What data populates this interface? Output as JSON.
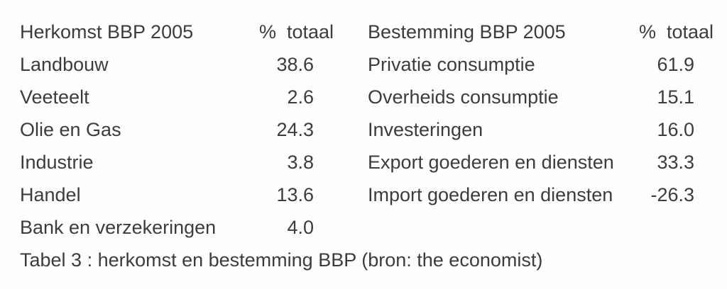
{
  "page": {
    "background": "#fefefe",
    "text_color": "#3c3c3c"
  },
  "tables": [
    {
      "title": "Herkomst BBP 2005",
      "value_header": "%  totaal",
      "rows": [
        {
          "label": "Landbouw",
          "value": "38.6"
        },
        {
          "label": "Veeteelt",
          "value": "2.6"
        },
        {
          "label": "Olie en Gas",
          "value": "24.3"
        },
        {
          "label": "Industrie",
          "value": "3.8"
        },
        {
          "label": "Handel",
          "value": "13.6"
        },
        {
          "label": "Bank en verzekeringen",
          "value": "4.0"
        }
      ]
    },
    {
      "title": "Bestemming BBP 2005",
      "value_header": "%  totaal",
      "rows": [
        {
          "label": "Privatie consumptie",
          "value": "61.9"
        },
        {
          "label": "Overheids consumptie",
          "value": "15.1"
        },
        {
          "label": "Investeringen",
          "value": "16.0"
        },
        {
          "label": "Export goederen en diensten",
          "value": "33.3"
        },
        {
          "label": "Import goederen en diensten",
          "value": "-26.3"
        }
      ]
    }
  ],
  "caption": {
    "text": "Tabel 3 : herkomst en bestemming BBP (bron: the economist)"
  },
  "chart_data": [
    {
      "type": "table",
      "title": "Herkomst BBP 2005",
      "columns": [
        "Herkomst BBP 2005",
        "% totaal"
      ],
      "rows": [
        [
          "Landbouw",
          38.6
        ],
        [
          "Veeteelt",
          2.6
        ],
        [
          "Olie en Gas",
          24.3
        ],
        [
          "Industrie",
          3.8
        ],
        [
          "Handel",
          13.6
        ],
        [
          "Bank en verzekeringen",
          4.0
        ]
      ]
    },
    {
      "type": "table",
      "title": "Bestemming BBP 2005",
      "columns": [
        "Bestemming BBP 2005",
        "% totaal"
      ],
      "rows": [
        [
          "Privatie consumptie",
          61.9
        ],
        [
          "Overheids consumptie",
          15.1
        ],
        [
          "Investeringen",
          16.0
        ],
        [
          "Export goederen en diensten",
          33.3
        ],
        [
          "Import goederen en diensten",
          -26.3
        ]
      ]
    }
  ]
}
